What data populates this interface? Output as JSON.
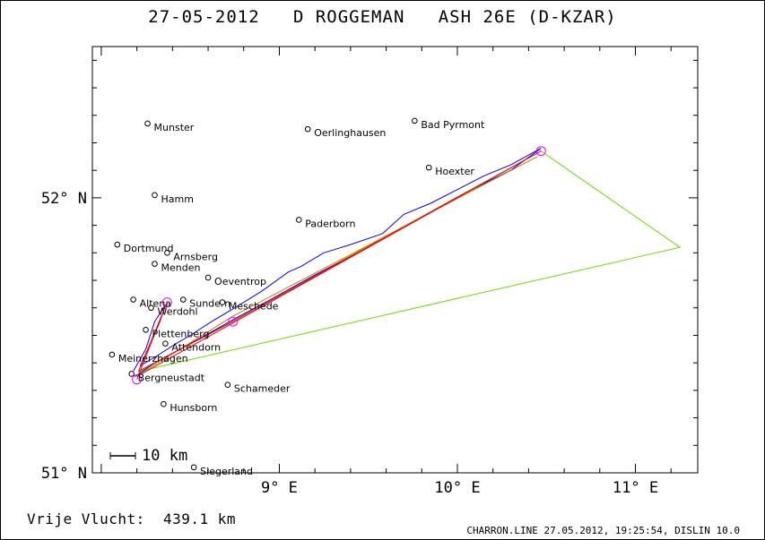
{
  "title": "27-05-2012   D ROGGEMAN   ASH 26E (D-KZAR)",
  "footer": {
    "distance_label": "Vrije Vlucht:",
    "distance_value": "439.1 km",
    "software": "CHARRON.LINE 27.05.2012, 19:25:54, DISLIN 10.0"
  },
  "colors": {
    "track": "#0000ff",
    "route": "#ff0000",
    "task": "#66dd00",
    "alt_route": "#c08000",
    "turnpoint": "#ff00ff",
    "frame": "#000000"
  },
  "chart_data": {
    "type": "map",
    "xlim": [
      7.95,
      11.35
    ],
    "ylim": [
      51.0,
      52.55
    ],
    "x_ticks": [
      {
        "value": 9,
        "label": "9° E"
      },
      {
        "value": 10,
        "label": "10° E"
      },
      {
        "value": 11,
        "label": "11° E"
      }
    ],
    "y_ticks": [
      {
        "value": 52,
        "label": "52° N"
      },
      {
        "value": 51,
        "label": "51° N"
      }
    ],
    "scale_bar": {
      "label": "10 km"
    },
    "places": [
      {
        "name": "Munster",
        "lon": 8.26,
        "lat": 52.27
      },
      {
        "name": "Oerlinghausen",
        "lon": 9.16,
        "lat": 52.25
      },
      {
        "name": "Bad Pyrmont",
        "lon": 9.76,
        "lat": 52.28
      },
      {
        "name": "Hoexter",
        "lon": 9.84,
        "lat": 52.11
      },
      {
        "name": "Hamm",
        "lon": 8.3,
        "lat": 52.01
      },
      {
        "name": "Paderborn",
        "lon": 9.11,
        "lat": 51.92
      },
      {
        "name": "Dortmund",
        "lon": 8.09,
        "lat": 51.83
      },
      {
        "name": "Arnsberg",
        "lon": 8.37,
        "lat": 51.8
      },
      {
        "name": "Menden",
        "lon": 8.3,
        "lat": 51.76
      },
      {
        "name": "Oeventrop",
        "lon": 8.6,
        "lat": 51.71
      },
      {
        "name": "Altena",
        "lon": 8.18,
        "lat": 51.63
      },
      {
        "name": "Sundern",
        "lon": 8.46,
        "lat": 51.63
      },
      {
        "name": "Meschede",
        "lon": 8.68,
        "lat": 51.62
      },
      {
        "name": "Werdohl",
        "lon": 8.28,
        "lat": 51.6
      },
      {
        "name": "Plettenberg",
        "lon": 8.25,
        "lat": 51.52
      },
      {
        "name": "Attendorn",
        "lon": 8.36,
        "lat": 51.47
      },
      {
        "name": "Meinerzhagen",
        "lon": 8.06,
        "lat": 51.43
      },
      {
        "name": "Bergneustadt",
        "lon": 8.17,
        "lat": 51.36
      },
      {
        "name": "Schameder",
        "lon": 8.71,
        "lat": 51.32
      },
      {
        "name": "Hunsborn",
        "lon": 8.35,
        "lat": 51.25
      },
      {
        "name": "Siegerland",
        "lon": 8.52,
        "lat": 51.02
      }
    ],
    "task_polygon": [
      {
        "lon": 8.22,
        "lat": 51.37
      },
      {
        "lon": 10.47,
        "lat": 52.17
      },
      {
        "lon": 11.25,
        "lat": 51.82
      },
      {
        "lon": 8.22,
        "lat": 51.37
      }
    ],
    "route": [
      {
        "lon": 8.2,
        "lat": 51.34
      },
      {
        "lon": 8.37,
        "lat": 51.62
      },
      {
        "lon": 8.21,
        "lat": 51.37
      },
      {
        "lon": 8.74,
        "lat": 51.55
      },
      {
        "lon": 10.47,
        "lat": 52.17
      },
      {
        "lon": 8.2,
        "lat": 51.35
      }
    ],
    "alt_route": [
      {
        "lon": 8.22,
        "lat": 51.36
      },
      {
        "lon": 8.74,
        "lat": 51.57
      },
      {
        "lon": 10.45,
        "lat": 52.15
      }
    ],
    "turnpoints": [
      {
        "lon": 8.2,
        "lat": 51.34
      },
      {
        "lon": 8.37,
        "lat": 51.62
      },
      {
        "lon": 8.74,
        "lat": 51.55
      },
      {
        "lon": 10.47,
        "lat": 52.17
      }
    ],
    "track": [
      {
        "lon": 8.18,
        "lat": 51.37
      },
      {
        "lon": 8.25,
        "lat": 51.45
      },
      {
        "lon": 8.3,
        "lat": 51.55
      },
      {
        "lon": 8.36,
        "lat": 51.61
      },
      {
        "lon": 8.33,
        "lat": 51.55
      },
      {
        "lon": 8.27,
        "lat": 51.46
      },
      {
        "lon": 8.22,
        "lat": 51.39
      },
      {
        "lon": 8.3,
        "lat": 51.42
      },
      {
        "lon": 8.42,
        "lat": 51.47
      },
      {
        "lon": 8.5,
        "lat": 51.5
      },
      {
        "lon": 8.62,
        "lat": 51.55
      },
      {
        "lon": 8.75,
        "lat": 51.6
      },
      {
        "lon": 8.9,
        "lat": 51.66
      },
      {
        "lon": 9.05,
        "lat": 51.73
      },
      {
        "lon": 9.12,
        "lat": 51.75
      },
      {
        "lon": 9.25,
        "lat": 51.8
      },
      {
        "lon": 9.4,
        "lat": 51.83
      },
      {
        "lon": 9.58,
        "lat": 51.87
      },
      {
        "lon": 9.7,
        "lat": 51.94
      },
      {
        "lon": 9.85,
        "lat": 51.98
      },
      {
        "lon": 10.0,
        "lat": 52.03
      },
      {
        "lon": 10.15,
        "lat": 52.08
      },
      {
        "lon": 10.3,
        "lat": 52.12
      },
      {
        "lon": 10.47,
        "lat": 52.18
      },
      {
        "lon": 10.3,
        "lat": 52.1
      },
      {
        "lon": 10.05,
        "lat": 52.02
      },
      {
        "lon": 9.8,
        "lat": 51.93
      },
      {
        "lon": 9.5,
        "lat": 51.82
      },
      {
        "lon": 9.2,
        "lat": 51.72
      },
      {
        "lon": 8.95,
        "lat": 51.63
      },
      {
        "lon": 8.75,
        "lat": 51.56
      },
      {
        "lon": 8.5,
        "lat": 51.47
      },
      {
        "lon": 8.3,
        "lat": 51.4
      },
      {
        "lon": 8.19,
        "lat": 51.35
      }
    ]
  }
}
